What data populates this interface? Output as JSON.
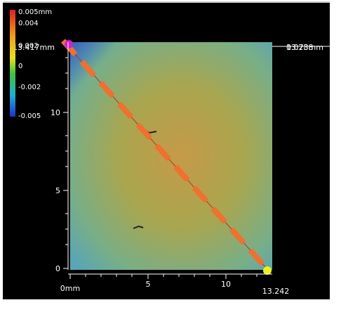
{
  "colorbar": {
    "labels": [
      "0.005mm",
      "0.004",
      "0.002",
      "0",
      "-0.002",
      "-0.005"
    ]
  },
  "profile": {
    "start_label": "13.417mm",
    "end_label": "13.238",
    "end_height": "0.078mm"
  },
  "y_axis": {
    "ticks": [
      "10",
      "5",
      "0"
    ]
  },
  "x_axis": {
    "ticks": [
      "0mm",
      "5",
      "10"
    ],
    "end_label": "13.242"
  }
}
